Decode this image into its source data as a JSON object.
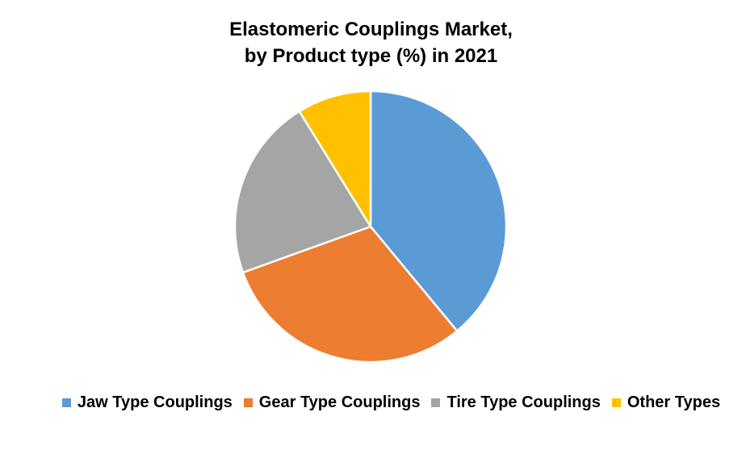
{
  "chart_data": {
    "type": "pie",
    "title": "Elastomeric Couplings Market,",
    "subtitle": "by Product type (%) in 2021",
    "categories": [
      "Jaw Type Couplings",
      "Gear Type Couplings",
      "Tire Type Couplings",
      "Other Types"
    ],
    "values": [
      39,
      30.5,
      21.7,
      8.8
    ],
    "colors": [
      "#5B9BD5",
      "#ED7D31",
      "#A5A5A5",
      "#FFC000"
    ],
    "legend_position": "bottom"
  }
}
